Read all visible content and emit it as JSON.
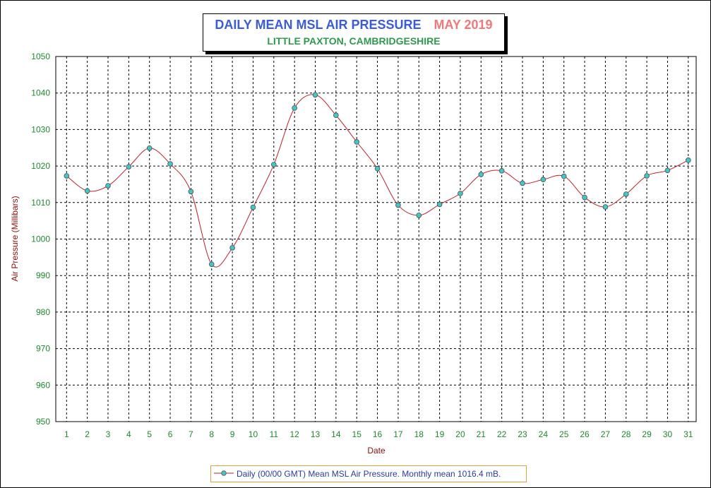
{
  "title": {
    "main": "DAILY MEAN MSL AIR PRESSURE",
    "month": "MAY 2019",
    "location": "LITTLE PAXTON, CAMBRIDGESHIRE"
  },
  "colors": {
    "title_main": "#3a5cd6",
    "title_month": "#f07878",
    "location": "#2e9a4e",
    "tick_labels": "#1c8a2c",
    "axis_labels": "#8b0f0f",
    "line": "#c0202a",
    "marker_fill": "#40c8c8",
    "legend_text": "#2a3aa0",
    "legend_border": "#e0a040"
  },
  "chart_data": {
    "type": "line",
    "xlabel": "Date",
    "ylabel": "Air Pressure (Millibars)",
    "ylim": [
      950,
      1050
    ],
    "yticks": [
      950,
      960,
      970,
      980,
      990,
      1000,
      1010,
      1020,
      1030,
      1040,
      1050
    ],
    "x": [
      1,
      2,
      3,
      4,
      5,
      6,
      7,
      8,
      9,
      10,
      11,
      12,
      13,
      14,
      15,
      16,
      17,
      18,
      19,
      20,
      21,
      22,
      23,
      24,
      25,
      26,
      27,
      28,
      29,
      30,
      31
    ],
    "grid": true,
    "legend_position": "bottom-center",
    "series": [
      {
        "name": "Daily (00/00 GMT) Mean MSL Air Pressure. Monthly mean 1016.4 mB.",
        "values": [
          1017.3,
          1013.2,
          1014.6,
          1019.8,
          1024.9,
          1020.6,
          1013.0,
          993.1,
          997.6,
          1008.7,
          1020.4,
          1035.9,
          1039.5,
          1033.9,
          1026.6,
          1019.3,
          1009.3,
          1006.5,
          1009.5,
          1012.5,
          1017.7,
          1018.7,
          1015.3,
          1016.3,
          1017.2,
          1011.4,
          1008.8,
          1012.3,
          1017.3,
          1018.8,
          1021.6
        ]
      }
    ]
  }
}
